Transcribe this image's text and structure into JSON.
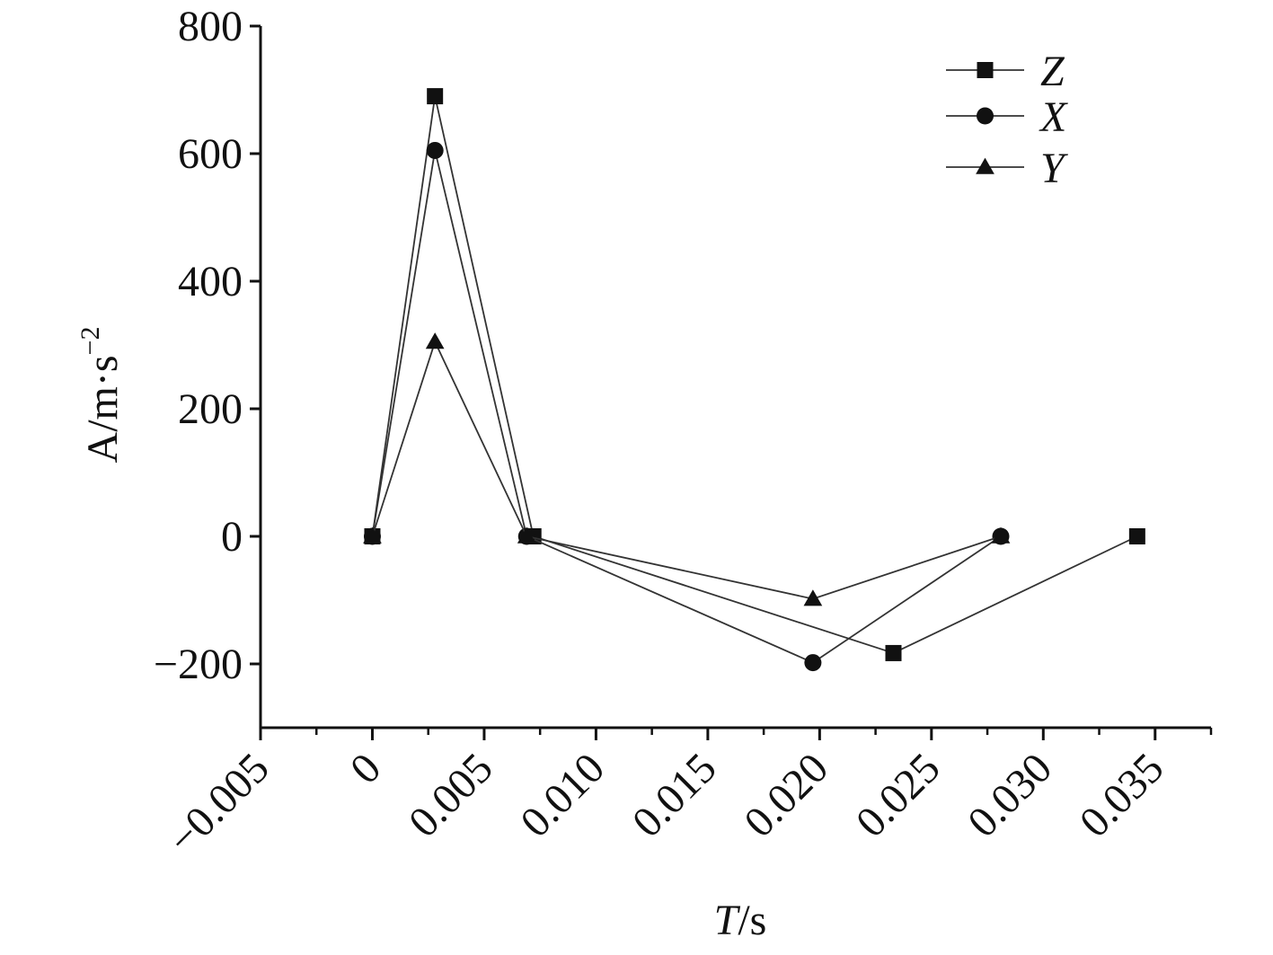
{
  "chart_data": {
    "type": "line",
    "xlabel": {
      "italic": "T",
      "rest": "/s"
    },
    "ylabel": {
      "base": "A/m·s",
      "sup": "−2"
    },
    "xlim": [
      -0.005,
      0.0375
    ],
    "ylim": [
      -300,
      800
    ],
    "x_ticks": [
      -0.005,
      0,
      0.005,
      0.01,
      0.015,
      0.02,
      0.025,
      0.03,
      0.035
    ],
    "x_tick_labels": [
      "−0.005",
      "0",
      "0.005",
      "0.010",
      "0.015",
      "0.020",
      "0.025",
      "0.030",
      "0.035"
    ],
    "y_ticks": [
      -200,
      0,
      200,
      400,
      600,
      800
    ],
    "y_tick_labels": [
      "−200",
      "0",
      "200",
      "400",
      "600",
      "800"
    ],
    "grid": false,
    "legend_position": "top-right",
    "colors": {
      "line": "#333333",
      "marker": "#111111",
      "axis": "#111111"
    },
    "series": [
      {
        "name": "Z",
        "marker": "square",
        "x": [
          0,
          0.0028,
          0.0072,
          0.0233,
          0.0342
        ],
        "y": [
          0,
          690,
          0,
          -183,
          0
        ]
      },
      {
        "name": "X",
        "marker": "circle",
        "x": [
          0,
          0.0028,
          0.0069,
          0.0197,
          0.0281
        ],
        "y": [
          0,
          605,
          0,
          -198,
          0
        ]
      },
      {
        "name": "Y",
        "marker": "triangle",
        "x": [
          0,
          0.0028,
          0.0069,
          0.0197,
          0.0281
        ],
        "y": [
          0,
          305,
          0,
          -98,
          0
        ]
      }
    ]
  }
}
